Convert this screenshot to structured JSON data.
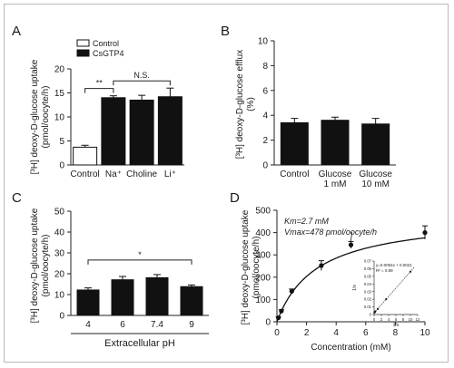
{
  "chart_data": [
    {
      "panel": "A",
      "type": "bar",
      "ylabel": "[³H] deoxy-D-glucose uptake (pmol/oocyte/h)",
      "ylim": [
        0,
        20
      ],
      "yticks": [
        0,
        5,
        10,
        15,
        20
      ],
      "categories": [
        "Control",
        "Na⁺",
        "Choline",
        "Li⁺"
      ],
      "values": [
        3.7,
        14.0,
        13.5,
        14.2
      ],
      "errors": [
        0.4,
        0.4,
        1.0,
        1.8
      ],
      "fills": [
        "#ffffff",
        "#111111",
        "#111111",
        "#111111"
      ],
      "legend": [
        {
          "label": "Control",
          "fill": "#ffffff"
        },
        {
          "label": "CsGTP4",
          "fill": "#111111"
        }
      ],
      "legend_position": "top-left",
      "annotations": [
        {
          "text": "**",
          "from": 0,
          "to": 1
        },
        {
          "text": "N.S.",
          "from": 1,
          "to": 3
        }
      ]
    },
    {
      "panel": "B",
      "type": "bar",
      "ylabel": "[³H] deoxy-D-glucose efflux (%)",
      "ylim": [
        0,
        10
      ],
      "yticks": [
        0,
        2,
        4,
        6,
        8,
        10
      ],
      "categories": [
        "Control",
        "Glucose 1 mM",
        "Glucose 10 mM"
      ],
      "values": [
        3.4,
        3.6,
        3.3
      ],
      "errors": [
        0.35,
        0.25,
        0.45
      ],
      "fills": [
        "#111111",
        "#111111",
        "#111111"
      ]
    },
    {
      "panel": "C",
      "type": "bar",
      "ylabel": "[³H] deoxy-D-glucose uptake (pmol/oocyte/h)",
      "xlabel": "Extracellular pH",
      "ylim": [
        0,
        50
      ],
      "yticks": [
        0,
        10,
        20,
        30,
        40,
        50
      ],
      "categories": [
        "4",
        "6",
        "7.4",
        "9"
      ],
      "values": [
        12.2,
        17.1,
        18.1,
        13.8
      ],
      "errors": [
        1.0,
        1.6,
        1.5,
        0.8
      ],
      "fills": [
        "#111111",
        "#111111",
        "#111111",
        "#111111"
      ],
      "annotations": [
        {
          "text": "*",
          "from": 0,
          "to": 3
        }
      ]
    },
    {
      "panel": "D",
      "type": "scatter",
      "ylabel": "[³H] deoxy-D-glucose uptake (pmol/oocyte/h)",
      "xlabel": "Concentration (mM)",
      "xlim": [
        0,
        10
      ],
      "ylim": [
        0,
        500
      ],
      "xticks": [
        0,
        2,
        4,
        6,
        8,
        10
      ],
      "yticks": [
        0,
        100,
        200,
        300,
        400,
        500
      ],
      "km": 2.7,
      "vmax": 478,
      "km_label": "Km=2.7 mM",
      "vmax_label": "Vmax=478 pmol/oocyte/h",
      "x": [
        0.1,
        0.3,
        1,
        3,
        5,
        10
      ],
      "y": [
        18,
        48,
        137,
        252,
        345,
        400
      ],
      "errors": [
        4,
        6,
        10,
        22,
        15,
        30
      ],
      "inset": {
        "type": "line",
        "equation": "y=0.0054x + 0.0021",
        "r2": "R² = 0.99",
        "xlabel": "1/s",
        "ylabel": "1/v",
        "xlim": [
          0,
          12
        ],
        "ylim": [
          0,
          0.07
        ],
        "xticks": [
          0,
          2,
          4,
          6,
          8,
          10,
          12
        ],
        "yticks": [
          0,
          0.01,
          0.02,
          0.03,
          0.04,
          0.05,
          0.06,
          0.07
        ],
        "ytick_labels": [
          "0",
          "0.01",
          "0.02",
          "0.03",
          "0.04",
          "0.05",
          "0.06",
          "0.07"
        ],
        "x": [
          0.1,
          0.2,
          0.33,
          1,
          3.33,
          10
        ],
        "y": [
          0.0026,
          0.0032,
          0.004,
          0.0073,
          0.0201,
          0.0561
        ]
      }
    }
  ]
}
